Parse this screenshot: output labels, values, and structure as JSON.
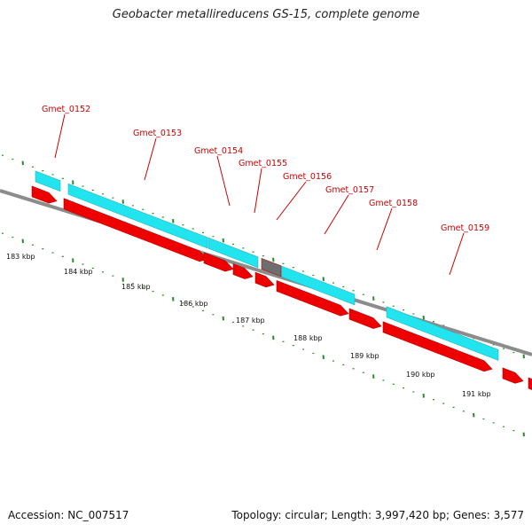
{
  "title": "Geobacter metallireducens GS-15, complete genome",
  "accession": "Accession: NC_007517",
  "topology": "Topology: circular; Length: 3,997,420 bp; Genes: 3,577",
  "colors": {
    "backbone": "#8c8c8c",
    "orf_red": "#ee0000",
    "cds_cyan": "#22e4ee",
    "other_grey": "#6e6e6e",
    "label_red": "#cc0000",
    "tick_green": "#2a8a2a"
  },
  "gene_labels": [
    "Gmet_0152",
    "Gmet_0153",
    "Gmet_0154",
    "Gmet_0155",
    "Gmet_0156",
    "Gmet_0157",
    "Gmet_0158",
    "Gmet_0159"
  ],
  "kbp_labels": [
    "183 kbp",
    "184 kbp",
    "185 kbp",
    "186 kbp",
    "187 kbp",
    "188 kbp",
    "189 kbp",
    "190 kbp",
    "191 kbp"
  ]
}
